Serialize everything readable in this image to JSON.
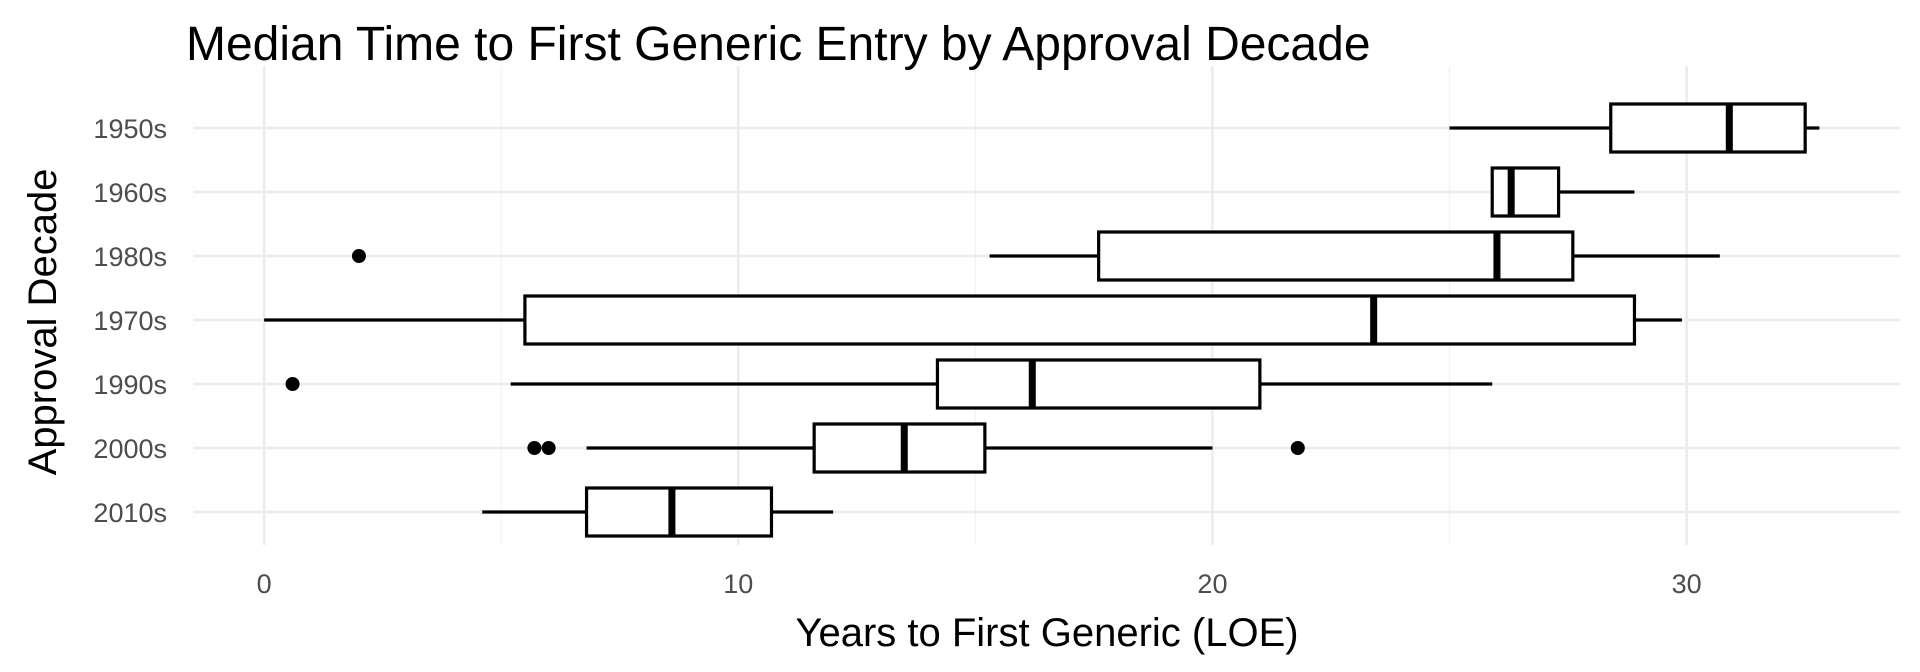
{
  "chart_data": {
    "type": "boxplot",
    "orientation": "horizontal",
    "title": "Median Time to First Generic Entry by Approval Decade",
    "xlabel": "Years to First Generic (LOE)",
    "ylabel": "Approval Decade",
    "xlim": [
      -1.5,
      34.5
    ],
    "xticks": [
      0,
      10,
      20,
      30
    ],
    "grid": true,
    "legend": "none",
    "categories": [
      "1950s",
      "1960s",
      "1980s",
      "1970s",
      "1990s",
      "2000s",
      "2010s"
    ],
    "boxes": [
      {
        "category": "1950s",
        "whisker_low": 25.0,
        "q1": 28.4,
        "median": 30.9,
        "q3": 32.5,
        "whisker_high": 32.8,
        "outliers": []
      },
      {
        "category": "1960s",
        "whisker_low": 25.9,
        "q1": 25.9,
        "median": 26.3,
        "q3": 27.3,
        "whisker_high": 28.9,
        "outliers": []
      },
      {
        "category": "1980s",
        "whisker_low": 15.3,
        "q1": 17.6,
        "median": 26.0,
        "q3": 27.6,
        "whisker_high": 30.7,
        "outliers": [
          2.0
        ]
      },
      {
        "category": "1970s",
        "whisker_low": 0.0,
        "q1": 5.5,
        "median": 23.4,
        "q3": 28.9,
        "whisker_high": 29.9,
        "outliers": []
      },
      {
        "category": "1990s",
        "whisker_low": 5.2,
        "q1": 14.2,
        "median": 16.2,
        "q3": 21.0,
        "whisker_high": 25.9,
        "outliers": [
          0.6
        ]
      },
      {
        "category": "2000s",
        "whisker_low": 6.8,
        "q1": 11.6,
        "median": 13.5,
        "q3": 15.2,
        "whisker_high": 20.0,
        "outliers": [
          5.7,
          6.0,
          21.8
        ]
      },
      {
        "category": "2010s",
        "whisker_low": 4.6,
        "q1": 6.8,
        "median": 8.6,
        "q3": 10.7,
        "whisker_high": 12.0,
        "outliers": []
      }
    ]
  }
}
